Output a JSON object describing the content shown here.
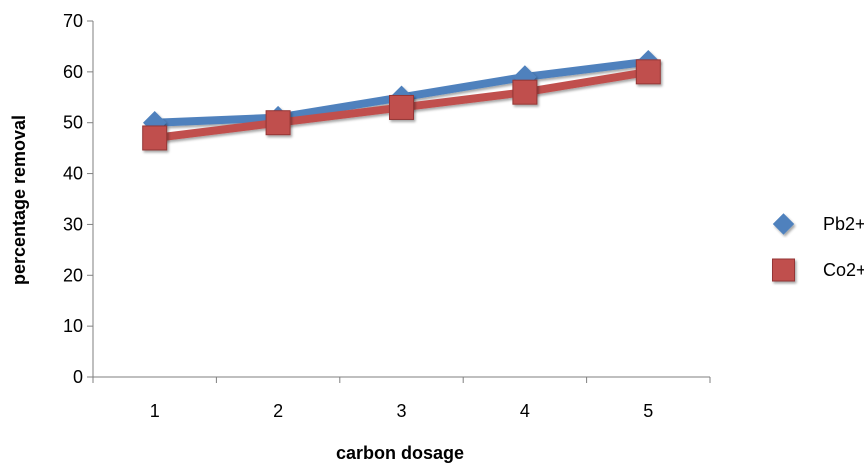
{
  "chart_data": {
    "type": "line",
    "title": "",
    "xlabel": "carbon dosage",
    "ylabel": "percentage removal",
    "categories": [
      "1",
      "2",
      "3",
      "4",
      "5"
    ],
    "ylim": [
      0,
      70
    ],
    "yticks": [
      "0",
      "10",
      "20",
      "30",
      "40",
      "50",
      "60",
      "70"
    ],
    "grid": false,
    "legend_position": "right",
    "series": [
      {
        "name": "Pb2+",
        "values": [
          50,
          51,
          55,
          59,
          62
        ],
        "color": "#4F81BD",
        "marker": "diamond"
      },
      {
        "name": "Co2+",
        "values": [
          47,
          50,
          53,
          56,
          60
        ],
        "color": "#C0504D",
        "marker": "square"
      }
    ]
  }
}
